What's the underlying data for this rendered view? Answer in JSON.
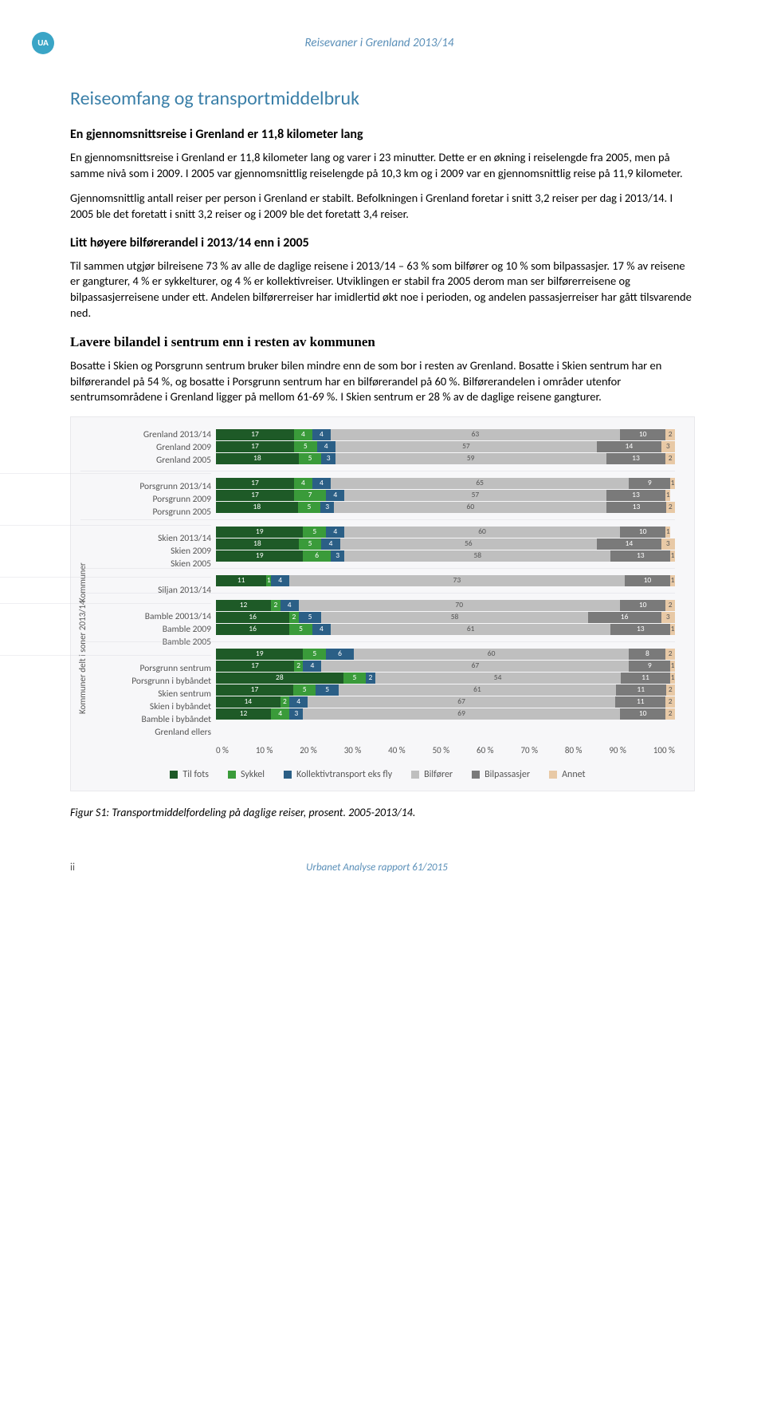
{
  "header": {
    "badge_text": "UA",
    "badge_bg": "#3aa5c6",
    "title": "Reisevaner i Grenland 2013/14",
    "title_color": "#5a8fb8"
  },
  "h1": {
    "text": "Reiseomfang og transportmiddelbruk",
    "color": "#3a7fa8"
  },
  "sub1": "En gjennomsnittsreise i Grenland er 11,8 kilometer lang",
  "p1": "En gjennomsnittsreise i Grenland er 11,8 kilometer lang og varer i 23 minutter. Dette er en økning i reiselengde fra 2005, men på samme nivå som i 2009. I 2005 var gjennomsnittlig reiselengde på 10,3 km og i 2009 var en gjennomsnittlig reise på 11,9 kilometer.",
  "p2": "Gjennomsnittlig antall reiser per person i Grenland er stabilt. Befolkningen i Grenland foretar i snitt 3,2 reiser per dag i 2013/14. I 2005 ble det foretatt i snitt 3,2 reiser og i 2009 ble det foretatt 3,4 reiser.",
  "sub2": "Litt høyere bilførerandel i 2013/14 enn i 2005",
  "p3": "Til sammen utgjør bilreisene 73 % av alle de daglige reisene i 2013/14 – 63 % som bilfører og 10 % som bilpassasjer. 17 % av reisene er gangturer, 4 % er sykkelturer, og 4 % er kollektivreiser. Utviklingen er stabil fra 2005 derom man ser bilførerreisene og bilpassasjerreisene under ett. Andelen bilførerreiser har imidlertid økt noe i perioden, og andelen passasjerreiser har gått tilsvarende ned.",
  "sub3": "Lavere bilandel i sentrum enn i resten av kommunen",
  "p4": "Bosatte i Skien og Porsgrunn sentrum bruker bilen mindre enn de som bor i resten av Grenland. Bosatte i Skien sentrum har en bilførerandel på 54 %, og bosatte i Porsgrunn sentrum har en bilførerandel på 60 %. Bilførerandelen i områder utenfor sentrumsområdene i Grenland ligger på mellom 61-69 %. I Skien sentrum er 28 % av de daglige reisene gangturer.",
  "chart": {
    "bg": "#f7f7f9",
    "ylabels": [
      {
        "text": "Kommuner delt i soner 2013/14",
        "top_pct": 92
      },
      {
        "text": "Kommuner",
        "top_pct": 56
      }
    ],
    "colors": {
      "til_fots": "#1e5a27",
      "sykkel": "#3a9b3a",
      "kollektiv": "#2b5f86",
      "bilforer": "#bfbfbf",
      "bilpass": "#7a7a7a",
      "annet": "#e8c9a6"
    },
    "legend": [
      {
        "label": "Til fots",
        "color": "#1e5a27"
      },
      {
        "label": "Sykkel",
        "color": "#3a9b3a"
      },
      {
        "label": "Kollektivtransport eks fly",
        "color": "#2b5f86"
      },
      {
        "label": "Bilfører",
        "color": "#bfbfbf"
      },
      {
        "label": "Bilpassasjer",
        "color": "#7a7a7a"
      },
      {
        "label": "Annet",
        "color": "#e8c9a6"
      }
    ],
    "xticks": [
      "0 %",
      "10 %",
      "20 %",
      "30 %",
      "40 %",
      "50 %",
      "60 %",
      "70 %",
      "80 %",
      "90 %",
      "100 %"
    ],
    "groups": [
      {
        "rows": [
          {
            "label": "Grenland 2013/14",
            "segs": [
              17,
              4,
              4,
              63,
              10,
              2
            ]
          },
          {
            "label": "Grenland 2009",
            "segs": [
              17,
              5,
              4,
              57,
              14,
              3
            ]
          },
          {
            "label": "Grenland 2005",
            "segs": [
              18,
              5,
              3,
              59,
              13,
              2
            ]
          }
        ]
      },
      {
        "rows": [
          {
            "label": "Porsgrunn 2013/14",
            "segs": [
              17,
              4,
              4,
              65,
              9,
              1
            ]
          },
          {
            "label": "Porsgrunn 2009",
            "segs": [
              17,
              7,
              4,
              57,
              13,
              1
            ]
          },
          {
            "label": "Porsgrunn 2005",
            "segs": [
              18,
              5,
              3,
              60,
              13,
              2
            ]
          }
        ]
      },
      {
        "rows": [
          {
            "label": "Skien 2013/14",
            "segs": [
              19,
              5,
              4,
              60,
              10,
              1
            ]
          },
          {
            "label": "Skien 2009",
            "segs": [
              18,
              5,
              4,
              56,
              14,
              3
            ]
          },
          {
            "label": "Skien 2005",
            "segs": [
              19,
              6,
              3,
              58,
              13,
              1
            ]
          }
        ]
      },
      {
        "rows": [
          {
            "label": "Siljan 2013/14",
            "segs": [
              11,
              1,
              4,
              73,
              10,
              1
            ]
          }
        ]
      },
      {
        "rows": [
          {
            "label": "Bamble 20013/14",
            "segs": [
              12,
              2,
              4,
              70,
              10,
              2
            ]
          },
          {
            "label": "Bamble 2009",
            "segs": [
              16,
              2,
              5,
              58,
              16,
              3
            ]
          },
          {
            "label": "Bamble 2005",
            "segs": [
              16,
              5,
              4,
              61,
              13,
              1
            ]
          }
        ]
      },
      {
        "rows": [
          {
            "label": "Porsgrunn sentrum",
            "segs": [
              19,
              5,
              6,
              60,
              8,
              2
            ]
          },
          {
            "label": "Porsgrunn i bybåndet",
            "segs": [
              17,
              2,
              4,
              67,
              9,
              1
            ]
          },
          {
            "label": "Skien sentrum",
            "segs": [
              28,
              5,
              2,
              54,
              11,
              1
            ]
          },
          {
            "label": "Skien i bybåndet",
            "segs": [
              17,
              5,
              5,
              61,
              11,
              2
            ]
          },
          {
            "label": "Bamble i bybåndet",
            "segs": [
              14,
              2,
              4,
              67,
              11,
              2
            ]
          },
          {
            "label": "Grenland ellers",
            "segs": [
              12,
              4,
              3,
              69,
              10,
              2
            ]
          }
        ]
      }
    ]
  },
  "fig_caption": "Figur S1: Transportmiddelfordeling på daglige reiser, prosent. 2005-2013/14.",
  "footer": {
    "page": "ii",
    "text": "Urbanet Analyse rapport 61/2015",
    "text_color": "#5a8fb8"
  }
}
